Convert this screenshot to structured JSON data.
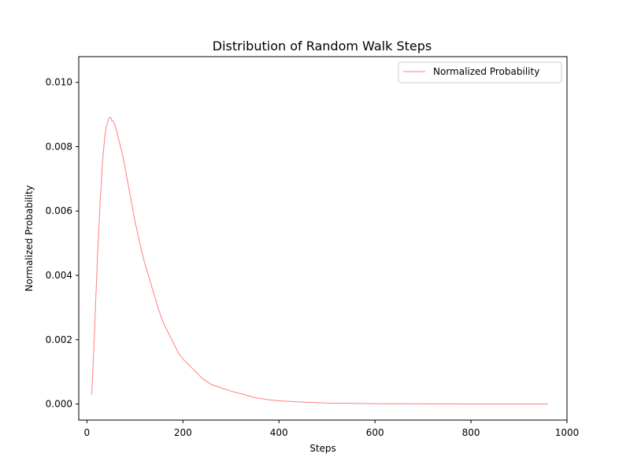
{
  "chart_data": {
    "type": "line",
    "title": "Distribution of Random Walk Steps",
    "xlabel": "Steps",
    "ylabel": "Normalized Probability",
    "xlim": [
      -17,
      1000
    ],
    "ylim": [
      -0.0005,
      0.0108
    ],
    "x_ticks": [
      0,
      200,
      400,
      600,
      800,
      1000
    ],
    "x_tick_labels": [
      "0",
      "200",
      "400",
      "600",
      "800",
      "1000"
    ],
    "y_ticks": [
      0.0,
      0.002,
      0.004,
      0.006,
      0.008,
      0.01
    ],
    "y_tick_labels": [
      "0.000",
      "0.002",
      "0.004",
      "0.006",
      "0.008",
      "0.010"
    ],
    "grid": false,
    "legend_position": "top-right",
    "series": [
      {
        "name": "Normalized Probability",
        "color": "#ff7f7f",
        "points": [
          [
            10,
            0.0003
          ],
          [
            12,
            0.0009
          ],
          [
            14,
            0.0016
          ],
          [
            16,
            0.0023
          ],
          [
            18,
            0.0031
          ],
          [
            20,
            0.0038
          ],
          [
            22,
            0.0046
          ],
          [
            24,
            0.0052
          ],
          [
            26,
            0.0058
          ],
          [
            28,
            0.0064
          ],
          [
            30,
            0.0069
          ],
          [
            32,
            0.0074
          ],
          [
            34,
            0.0078
          ],
          [
            36,
            0.0081
          ],
          [
            38,
            0.0084
          ],
          [
            40,
            0.0086
          ],
          [
            42,
            0.0087
          ],
          [
            44,
            0.0088
          ],
          [
            46,
            0.0089
          ],
          [
            48,
            0.0089
          ],
          [
            50,
            0.0089
          ],
          [
            52,
            0.0088
          ],
          [
            55,
            0.0088
          ],
          [
            60,
            0.0086
          ],
          [
            65,
            0.0083
          ],
          [
            70,
            0.008
          ],
          [
            75,
            0.0077
          ],
          [
            80,
            0.0073
          ],
          [
            85,
            0.0069
          ],
          [
            90,
            0.0065
          ],
          [
            95,
            0.0061
          ],
          [
            100,
            0.0057
          ],
          [
            110,
            0.005
          ],
          [
            120,
            0.0044
          ],
          [
            130,
            0.0039
          ],
          [
            140,
            0.0034
          ],
          [
            150,
            0.0029
          ],
          [
            160,
            0.0025
          ],
          [
            170,
            0.0022
          ],
          [
            180,
            0.0019
          ],
          [
            190,
            0.0016
          ],
          [
            200,
            0.0014
          ],
          [
            220,
            0.0011
          ],
          [
            240,
            0.0008
          ],
          [
            260,
            0.0006
          ],
          [
            280,
            0.0005
          ],
          [
            300,
            0.0004
          ],
          [
            325,
            0.0003
          ],
          [
            350,
            0.0002
          ],
          [
            375,
            0.00014
          ],
          [
            400,
            0.0001
          ],
          [
            450,
            6e-05
          ],
          [
            500,
            3e-05
          ],
          [
            550,
            2e-05
          ],
          [
            600,
            1e-05
          ],
          [
            700,
            5e-06
          ],
          [
            800,
            2e-06
          ],
          [
            900,
            1e-06
          ],
          [
            960,
            0.0
          ]
        ]
      }
    ]
  }
}
